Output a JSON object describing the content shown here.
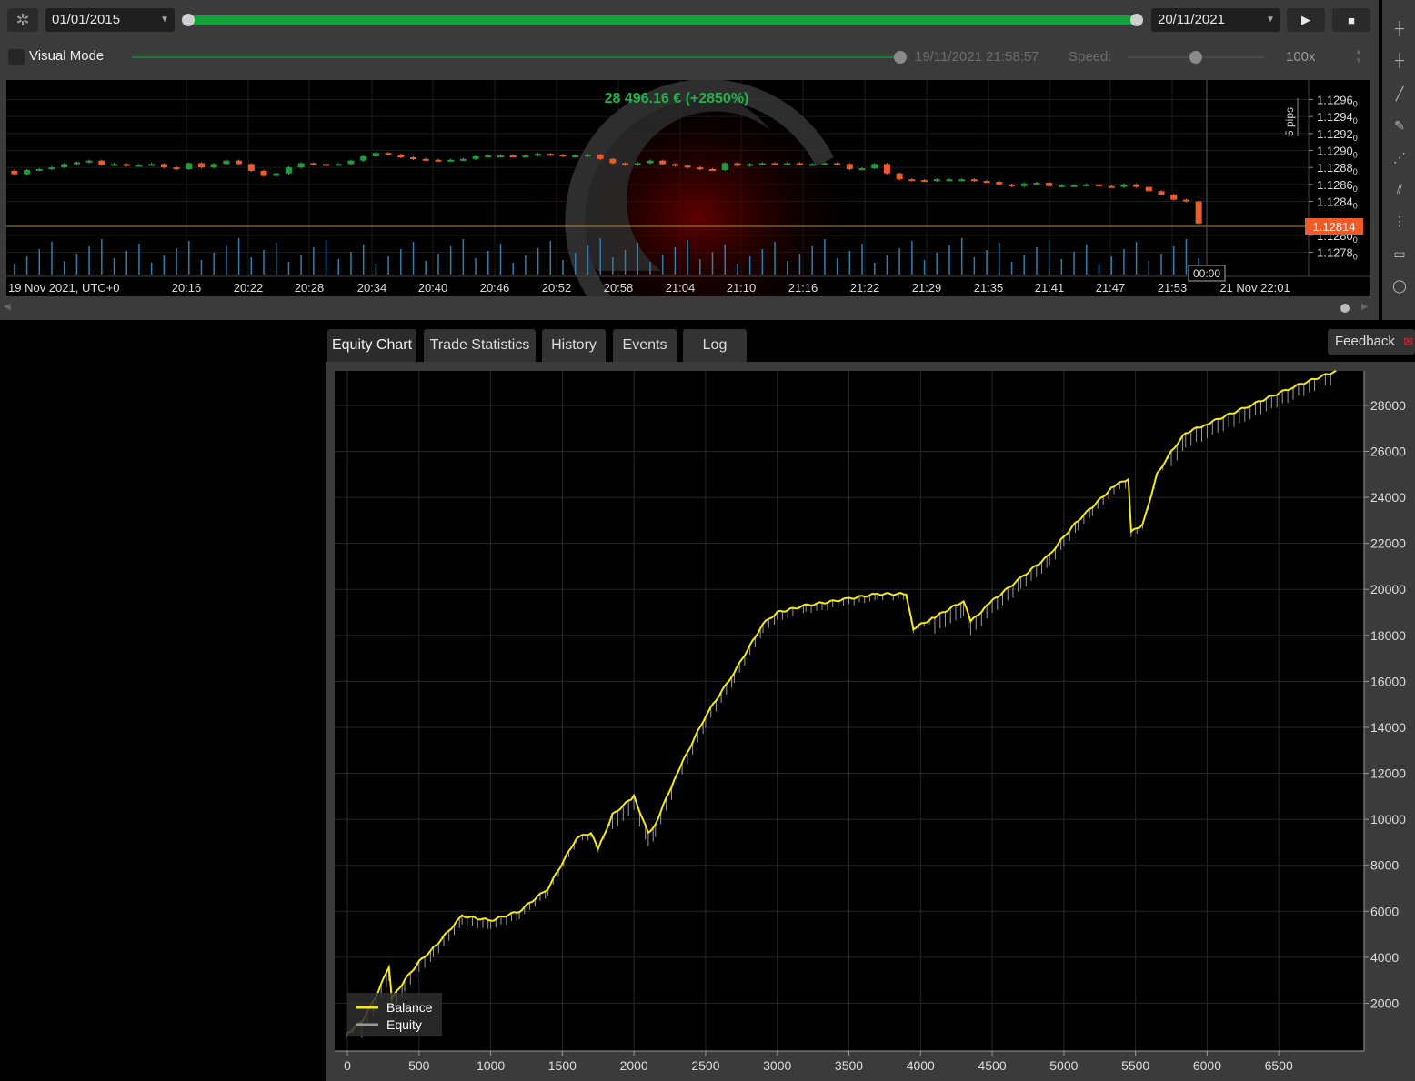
{
  "toolbar": {
    "gear_icon": "gear-icon",
    "start_date": "01/01/2015",
    "end_date": "20/11/2021",
    "play_icon": "▶",
    "stop_icon": "■"
  },
  "visual_mode": {
    "label": "Visual Mode",
    "checked": false,
    "progress": 0.99,
    "timestamp": "19/11/2021 21:58:57",
    "speed_label": "Speed:",
    "speed_value": "100x",
    "speed_level": 0.5
  },
  "candle_chart": {
    "profit_label": "28 496.16 € (+2850%)",
    "pips_label": "5 pips",
    "price_ticks": [
      "1.1296",
      "1.1294",
      "1.1292",
      "1.1290",
      "1.1288",
      "1.1286",
      "1.1284",
      "1.1280",
      "1.1278"
    ],
    "price_tick_subscripts": [
      "0",
      "0",
      "0",
      "0",
      "0",
      "0",
      "0",
      "0",
      "0"
    ],
    "current_price": "1.12814",
    "time_ticks": [
      "19 Nov 2021, UTC+0",
      "20:16",
      "20:22",
      "20:28",
      "20:34",
      "20:40",
      "20:46",
      "20:52",
      "20:58",
      "21:04",
      "21:10",
      "21:16",
      "21:22",
      "21:29",
      "21:35",
      "21:41",
      "21:47",
      "21:53",
      "21 Nov 22:01"
    ],
    "crosshair_time": "00:00",
    "colors": {
      "bull": "#1f9e3e",
      "bear": "#f05a28",
      "volume": "#2f7fb0",
      "price_line": "#b08a30",
      "price_tag": "#f05a28"
    },
    "closes": [
      1.12872,
      1.12877,
      1.12878,
      1.1288,
      1.12884,
      1.12886,
      1.12888,
      1.12883,
      1.12884,
      1.12882,
      1.12883,
      1.12884,
      1.1288,
      1.12878,
      1.12885,
      1.1288,
      1.12884,
      1.12888,
      1.12884,
      1.12876,
      1.1287,
      1.12873,
      1.1288,
      1.12885,
      1.12884,
      1.12883,
      1.12884,
      1.12888,
      1.12893,
      1.12897,
      1.12895,
      1.12892,
      1.1289,
      1.12889,
      1.12888,
      1.12889,
      1.1289,
      1.12893,
      1.12894,
      1.12894,
      1.12893,
      1.12894,
      1.12896,
      1.12895,
      1.12893,
      1.12894,
      1.12895,
      1.1289,
      1.12885,
      1.12883,
      1.12885,
      1.12888,
      1.12884,
      1.12882,
      1.1288,
      1.12878,
      1.12877,
      1.12885,
      1.12882,
      1.12884,
      1.12885,
      1.12884,
      1.12885,
      1.12884,
      1.12884,
      1.12885,
      1.12884,
      1.12878,
      1.12879,
      1.12884,
      1.12873,
      1.12866,
      1.12865,
      1.12864,
      1.12866,
      1.12866,
      1.12866,
      1.12864,
      1.12863,
      1.1286,
      1.12858,
      1.12861,
      1.12862,
      1.12858,
      1.12859,
      1.12859,
      1.1286,
      1.12858,
      1.12857,
      1.1286,
      1.12857,
      1.12852,
      1.12848,
      1.12842,
      1.1284,
      1.12814
    ]
  },
  "tabs": [
    {
      "label": "Equity Chart",
      "active": true
    },
    {
      "label": "Trade Statistics",
      "active": false
    },
    {
      "label": "History",
      "active": false
    },
    {
      "label": "Events",
      "active": false
    },
    {
      "label": "Log",
      "active": false
    }
  ],
  "feedback_label": "Feedback",
  "chart_data": {
    "type": "line",
    "title": "",
    "xlabel": "",
    "ylabel": "",
    "xlim": [
      0,
      7000
    ],
    "ylim": [
      0,
      29500
    ],
    "x_ticks": [
      0,
      500,
      1000,
      1500,
      2000,
      2500,
      3000,
      3500,
      4000,
      4500,
      5000,
      5500,
      6000,
      6500
    ],
    "y_ticks": [
      2000,
      4000,
      6000,
      8000,
      10000,
      12000,
      14000,
      16000,
      18000,
      20000,
      22000,
      24000,
      26000,
      28000
    ],
    "grid": true,
    "legend_position": "bottom-left",
    "series": [
      {
        "name": "Balance",
        "color": "#f5ea14",
        "x": [
          0,
          100,
          200,
          290,
          310,
          400,
          500,
          600,
          800,
          1000,
          1200,
          1400,
          1600,
          1700,
          1750,
          1850,
          2000,
          2100,
          2150,
          2300,
          2500,
          2700,
          2900,
          3000,
          3200,
          3500,
          3700,
          3900,
          3950,
          4100,
          4300,
          4350,
          4500,
          4700,
          4900,
          5000,
          5100,
          5200,
          5350,
          5450,
          5470,
          5550,
          5650,
          5750,
          5850,
          6000,
          6300,
          6600,
          6900
        ],
        "values": [
          700,
          1200,
          2300,
          3600,
          2200,
          3000,
          3800,
          4400,
          5800,
          5600,
          6000,
          7000,
          9200,
          9400,
          8700,
          10200,
          11000,
          9400,
          9800,
          12000,
          14500,
          16400,
          18500,
          19000,
          19300,
          19600,
          19800,
          19800,
          18300,
          18800,
          19500,
          18600,
          19500,
          20500,
          21500,
          22300,
          23000,
          23600,
          24500,
          24800,
          22500,
          22800,
          25000,
          26000,
          26800,
          27200,
          28000,
          28800,
          29500
        ]
      },
      {
        "name": "Equity",
        "color": "#9a9a9a"
      }
    ]
  }
}
